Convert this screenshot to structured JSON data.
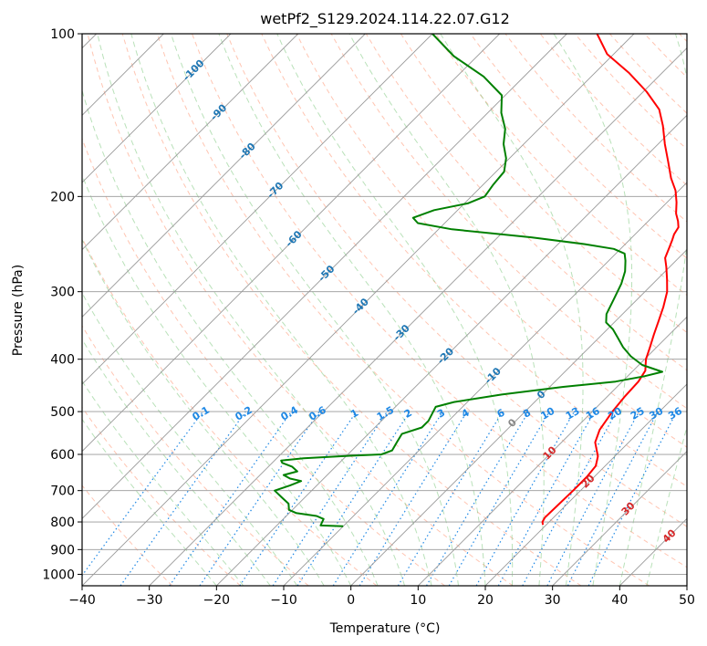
{
  "chart_data": {
    "type": "line",
    "title": "wetPf2_S129.2024.114.22.07.G12",
    "xlabel": "Temperature (°C)",
    "ylabel": "Pressure (hPa)",
    "xlim": [
      -40,
      50
    ],
    "ylim": [
      1050,
      100
    ],
    "y_scale": "log",
    "x_ticks": [
      -40,
      -30,
      -20,
      -10,
      0,
      10,
      20,
      30,
      40,
      50
    ],
    "x_tick_labels": [
      "−40",
      "−30",
      "−20",
      "−10",
      "0",
      "10",
      "20",
      "30",
      "40",
      "50"
    ],
    "y_ticks": [
      1000,
      900,
      800,
      700,
      600,
      500,
      400,
      300,
      200,
      100
    ],
    "y_tick_labels": [
      "1000",
      "900",
      "800",
      "700",
      "600",
      "500",
      "400",
      "300",
      "200",
      "100"
    ],
    "grid": true,
    "colors": {
      "temperature": "#ff0000",
      "dewpoint": "#008000",
      "isotherm": "#999999",
      "dry_adiabat": "#ff8c66",
      "moist_adiabat": "#7fc97f",
      "mixing_ratio": "#1e88e5",
      "isotherm_label": "#1f77b4",
      "adiabat_label": "#d62728"
    },
    "series": [
      {
        "key": "temperature",
        "points": [
          [
            19.5,
            810
          ],
          [
            19.0,
            800
          ],
          [
            18.7,
            785
          ],
          [
            18.8,
            750
          ],
          [
            18.9,
            700
          ],
          [
            18.9,
            660
          ],
          [
            18.6,
            630
          ],
          [
            17.5,
            605
          ],
          [
            15.0,
            570
          ],
          [
            13.8,
            540
          ],
          [
            13.0,
            500
          ],
          [
            12.6,
            470
          ],
          [
            12.4,
            440
          ],
          [
            11.8,
            420
          ],
          [
            11.0,
            410
          ],
          [
            10.2,
            400
          ],
          [
            9.0,
            380
          ],
          [
            7.7,
            360
          ],
          [
            6.4,
            340
          ],
          [
            5.0,
            320
          ],
          [
            3.3,
            300
          ],
          [
            1.5,
            285
          ],
          [
            -0.5,
            270
          ],
          [
            -2.0,
            260
          ],
          [
            -3.0,
            248
          ],
          [
            -3.6,
            241
          ],
          [
            -4.2,
            235
          ],
          [
            -4.6,
            228
          ],
          [
            -5.6,
            222
          ],
          [
            -7.0,
            215
          ],
          [
            -8.6,
            205
          ],
          [
            -10.5,
            195
          ],
          [
            -13.0,
            185
          ],
          [
            -16.0,
            172
          ],
          [
            -19.0,
            160
          ],
          [
            -22.0,
            148
          ],
          [
            -25.0,
            138
          ],
          [
            -29.5,
            128
          ],
          [
            -35.0,
            118
          ],
          [
            -41.0,
            109
          ],
          [
            -45.5,
            100
          ]
        ]
      },
      {
        "key": "dewpoint",
        "points": [
          [
            -10.0,
            815
          ],
          [
            -13.5,
            812
          ],
          [
            -14.0,
            790
          ],
          [
            -15.5,
            780
          ],
          [
            -19.0,
            770
          ],
          [
            -20.5,
            760
          ],
          [
            -21.5,
            740
          ],
          [
            -23.5,
            720
          ],
          [
            -25.5,
            700
          ],
          [
            -24.0,
            685
          ],
          [
            -23.0,
            672
          ],
          [
            -25.0,
            665
          ],
          [
            -26.5,
            655
          ],
          [
            -25.0,
            645
          ],
          [
            -26.5,
            632
          ],
          [
            -28.5,
            622
          ],
          [
            -29.0,
            616
          ],
          [
            -26.0,
            610
          ],
          [
            -21.0,
            605
          ],
          [
            -15.0,
            600
          ],
          [
            -14.0,
            590
          ],
          [
            -14.5,
            570
          ],
          [
            -15.0,
            550
          ],
          [
            -13.0,
            535
          ],
          [
            -13.0,
            520
          ],
          [
            -13.5,
            505
          ],
          [
            -14.0,
            490
          ],
          [
            -12.0,
            480
          ],
          [
            -6.0,
            465
          ],
          [
            2.0,
            450
          ],
          [
            9.0,
            440
          ],
          [
            12.5,
            430
          ],
          [
            14.5,
            422
          ],
          [
            10.5,
            410
          ],
          [
            7.5,
            395
          ],
          [
            5.0,
            380
          ],
          [
            2.8,
            365
          ],
          [
            0.8,
            352
          ],
          [
            -1.2,
            342
          ],
          [
            -2.4,
            330
          ],
          [
            -3.5,
            310
          ],
          [
            -4.7,
            290
          ],
          [
            -6.0,
            275
          ],
          [
            -7.5,
            263
          ],
          [
            -8.7,
            255
          ],
          [
            -11.0,
            250
          ],
          [
            -16.0,
            245
          ],
          [
            -25.0,
            238
          ],
          [
            -38.0,
            230
          ],
          [
            -44.0,
            224
          ],
          [
            -45.5,
            219
          ],
          [
            -43.5,
            212
          ],
          [
            -39.5,
            206
          ],
          [
            -38.0,
            200
          ],
          [
            -38.5,
            190
          ],
          [
            -38.8,
            180
          ],
          [
            -40.5,
            170
          ],
          [
            -43.0,
            160
          ],
          [
            -45.0,
            150
          ],
          [
            -48.0,
            140
          ],
          [
            -50.5,
            130
          ],
          [
            -56.0,
            120
          ],
          [
            -63.5,
            110
          ],
          [
            -70.0,
            100
          ]
        ]
      }
    ],
    "isotherm_labels": [
      "-100",
      "-90",
      "-80",
      "-70",
      "-60",
      "-50",
      "-40",
      "-30",
      "-20",
      "-10",
      "0"
    ],
    "mixing_ratio_labels": [
      "0.1",
      "0.2",
      "0.4",
      "0.6",
      "1",
      "1.5",
      "2",
      "3",
      "4",
      "6",
      "8",
      "10",
      "13",
      "16",
      "20",
      "25",
      "30",
      "36"
    ],
    "adiabat_labels": [
      "0",
      "10",
      "20",
      "30",
      "40"
    ]
  }
}
